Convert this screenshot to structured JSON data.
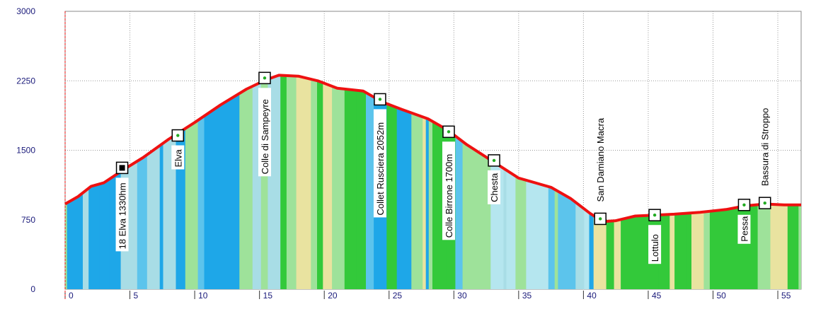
{
  "chart_data": {
    "type": "area",
    "title": "",
    "xlabel": "",
    "ylabel": "",
    "xlim": [
      0,
      56.8
    ],
    "ylim": [
      0,
      3000
    ],
    "x_ticks": [
      0,
      5,
      10,
      15,
      20,
      25,
      30,
      35,
      40,
      45,
      50,
      55
    ],
    "y_ticks": [
      0,
      750,
      1500,
      2250,
      3000
    ],
    "grid": true,
    "line_color": "#ee1111",
    "series": [
      {
        "x": [
          0,
          1,
          2,
          3,
          4.5,
          6,
          8,
          10,
          12,
          14,
          15.5,
          16.5,
          18,
          19.5,
          21,
          23,
          24.5,
          26,
          28,
          29.5,
          31,
          33,
          35,
          37.5,
          39,
          40.5,
          41.5,
          42.5,
          44,
          45.5,
          47,
          49,
          51,
          52.5,
          54,
          55.5,
          56.8
        ],
        "y": [
          920,
          1000,
          1110,
          1150,
          1290,
          1420,
          1620,
          1800,
          1990,
          2160,
          2260,
          2310,
          2300,
          2250,
          2170,
          2140,
          2020,
          1940,
          1840,
          1720,
          1560,
          1380,
          1200,
          1100,
          980,
          820,
          730,
          740,
          790,
          800,
          810,
          830,
          860,
          900,
          920,
          910,
          910
        ]
      }
    ],
    "waypoints": [
      {
        "x": 4.4,
        "elev": 1310,
        "label": "18 Elva 1330hm",
        "filled": true,
        "label_pos": "below"
      },
      {
        "x": 8.7,
        "elev": 1660,
        "label": "Elva",
        "filled": false,
        "label_pos": "below"
      },
      {
        "x": 15.4,
        "elev": 2280,
        "label": "Colle di Sampeyre",
        "filled": false,
        "label_pos": "below"
      },
      {
        "x": 24.3,
        "elev": 2050,
        "label": "Collet Rusciera 2052m",
        "filled": false,
        "label_pos": "below"
      },
      {
        "x": 29.6,
        "elev": 1700,
        "label": "Colle Birrone 1700m",
        "filled": false,
        "label_pos": "below"
      },
      {
        "x": 33.1,
        "elev": 1390,
        "label": "Chesta",
        "filled": false,
        "label_pos": "below"
      },
      {
        "x": 41.3,
        "elev": 760,
        "label": "San Damiano Macra",
        "filled": false,
        "label_pos": "above"
      },
      {
        "x": 45.5,
        "elev": 800,
        "label": "Lottulo",
        "filled": false,
        "label_pos": "below"
      },
      {
        "x": 52.4,
        "elev": 910,
        "label": "Pessa",
        "filled": false,
        "label_pos": "below"
      },
      {
        "x": 54.0,
        "elev": 930,
        "label": "Bassura di Stroppo",
        "filled": false,
        "label_pos": "above"
      }
    ],
    "surface_colors": [
      "#a8dde6",
      "#1ea7e8",
      "#5cc4ec",
      "#9ee29a",
      "#33c93a",
      "#e9e3a0",
      "#b5e6ef"
    ]
  }
}
